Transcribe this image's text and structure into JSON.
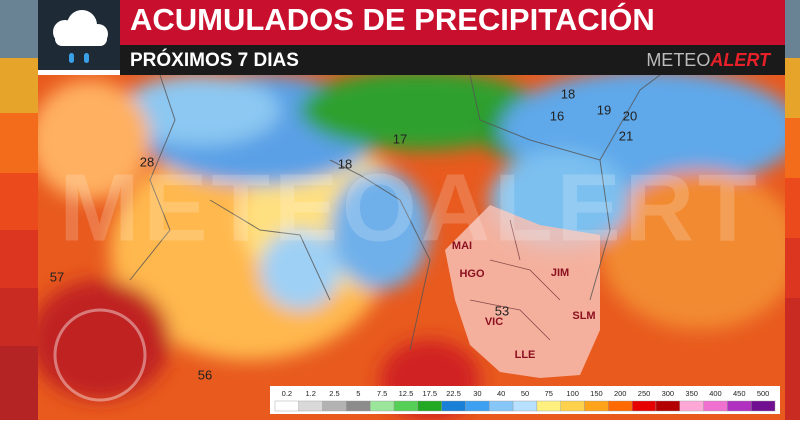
{
  "header": {
    "title": "ACUMULADOS DE PRECIPITACIÓN",
    "subtitle": "PRÓXIMOS 7 DIAS",
    "brand_left": "METEO",
    "brand_right": "ALERT"
  },
  "watermark": "METEOALERT",
  "map": {
    "labels": [
      "28",
      "18",
      "17",
      "57",
      "56",
      "53",
      "16",
      "18",
      "19",
      "20",
      "21"
    ],
    "cities": [
      "MAI",
      "HGO",
      "JIM",
      "VIC",
      "SLM",
      "LLE"
    ]
  },
  "legend": {
    "labels": [
      0.2,
      1.2,
      2.5,
      5,
      7.5,
      12.5,
      17.5,
      22.5,
      30,
      40,
      50,
      75,
      100,
      150,
      200,
      250,
      300,
      350,
      400,
      450,
      500
    ],
    "colors": [
      "#ffffff",
      "#d9d9d9",
      "#b3b3b3",
      "#8c8c8c",
      "#9be69b",
      "#55cf55",
      "#22a822",
      "#1a7fd6",
      "#3da0f0",
      "#86c7f7",
      "#b8e0ff",
      "#fff080",
      "#ffd24d",
      "#ffa31a",
      "#ff6a00",
      "#e60000",
      "#b30000",
      "#ffa8d8",
      "#f070d0",
      "#b030c0",
      "#701090"
    ]
  }
}
